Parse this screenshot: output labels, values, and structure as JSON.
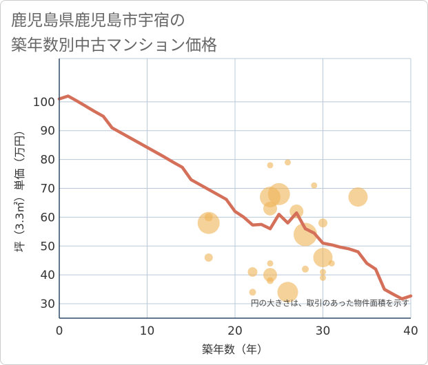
{
  "title_lines": [
    "鹿児島県鹿児島市宇宿の",
    "築年数別中古マンション価格"
  ],
  "chart_data": {
    "type": "scatter",
    "title": "鹿児島県鹿児島市宇宿の築年数別中古マンション価格",
    "xlabel": "築年数（年）",
    "ylabel": "坪（3.3㎡）単価（万円）",
    "xlim": [
      0,
      40
    ],
    "ylim": [
      25,
      115
    ],
    "x_ticks": [
      0,
      10,
      20,
      30,
      40
    ],
    "y_ticks": [
      30,
      40,
      50,
      60,
      70,
      80,
      90,
      100
    ],
    "grid": true,
    "note": "円の大きさは、取引のあった物件面積を示す",
    "colors": {
      "line": "#d4705a",
      "bubble": "#f0b458",
      "grid": "#b8c8d8",
      "axis": "#2e4a66"
    },
    "line": {
      "x": [
        0,
        1,
        2,
        3,
        4,
        5,
        6,
        7,
        8,
        9,
        10,
        11,
        12,
        13,
        14,
        15,
        16,
        17,
        18,
        19,
        20,
        21,
        22,
        23,
        24,
        25,
        26,
        27,
        28,
        29,
        30,
        31,
        32,
        33,
        34,
        35,
        36,
        37,
        38,
        39,
        40
      ],
      "y": [
        101,
        102,
        100.3,
        98.5,
        96.7,
        95,
        91,
        89.3,
        87.6,
        85.9,
        84.2,
        82.5,
        80.8,
        79,
        77.3,
        73,
        71.3,
        69.6,
        67.9,
        66.2,
        62,
        60,
        57.3,
        57.5,
        56,
        61,
        58,
        61.5,
        56,
        54.5,
        51,
        50.4,
        49.6,
        49,
        48,
        44,
        42,
        35,
        33.3,
        31.7,
        32.7
      ]
    },
    "points": [
      {
        "x": 17,
        "y": 58,
        "size": 16
      },
      {
        "x": 17,
        "y": 60,
        "size": 6
      },
      {
        "x": 17,
        "y": 46,
        "size": 6
      },
      {
        "x": 22,
        "y": 41,
        "size": 7
      },
      {
        "x": 22,
        "y": 34,
        "size": 5
      },
      {
        "x": 24,
        "y": 78,
        "size": 4.5
      },
      {
        "x": 24,
        "y": 67,
        "size": 15
      },
      {
        "x": 24,
        "y": 63,
        "size": 10
      },
      {
        "x": 24,
        "y": 44,
        "size": 4.5
      },
      {
        "x": 24,
        "y": 40,
        "size": 10
      },
      {
        "x": 24,
        "y": 38,
        "size": 5
      },
      {
        "x": 25,
        "y": 68,
        "size": 16
      },
      {
        "x": 26,
        "y": 79,
        "size": 4.5
      },
      {
        "x": 26,
        "y": 34,
        "size": 15
      },
      {
        "x": 27,
        "y": 62,
        "size": 10
      },
      {
        "x": 28,
        "y": 54,
        "size": 17
      },
      {
        "x": 28,
        "y": 42,
        "size": 5
      },
      {
        "x": 29,
        "y": 71,
        "size": 4.5
      },
      {
        "x": 30,
        "y": 58,
        "size": 6.5
      },
      {
        "x": 30,
        "y": 46,
        "size": 14
      },
      {
        "x": 30,
        "y": 41,
        "size": 4.5
      },
      {
        "x": 30,
        "y": 39,
        "size": 4.5
      },
      {
        "x": 31,
        "y": 44,
        "size": 4.5
      },
      {
        "x": 34,
        "y": 67,
        "size": 14
      }
    ]
  }
}
